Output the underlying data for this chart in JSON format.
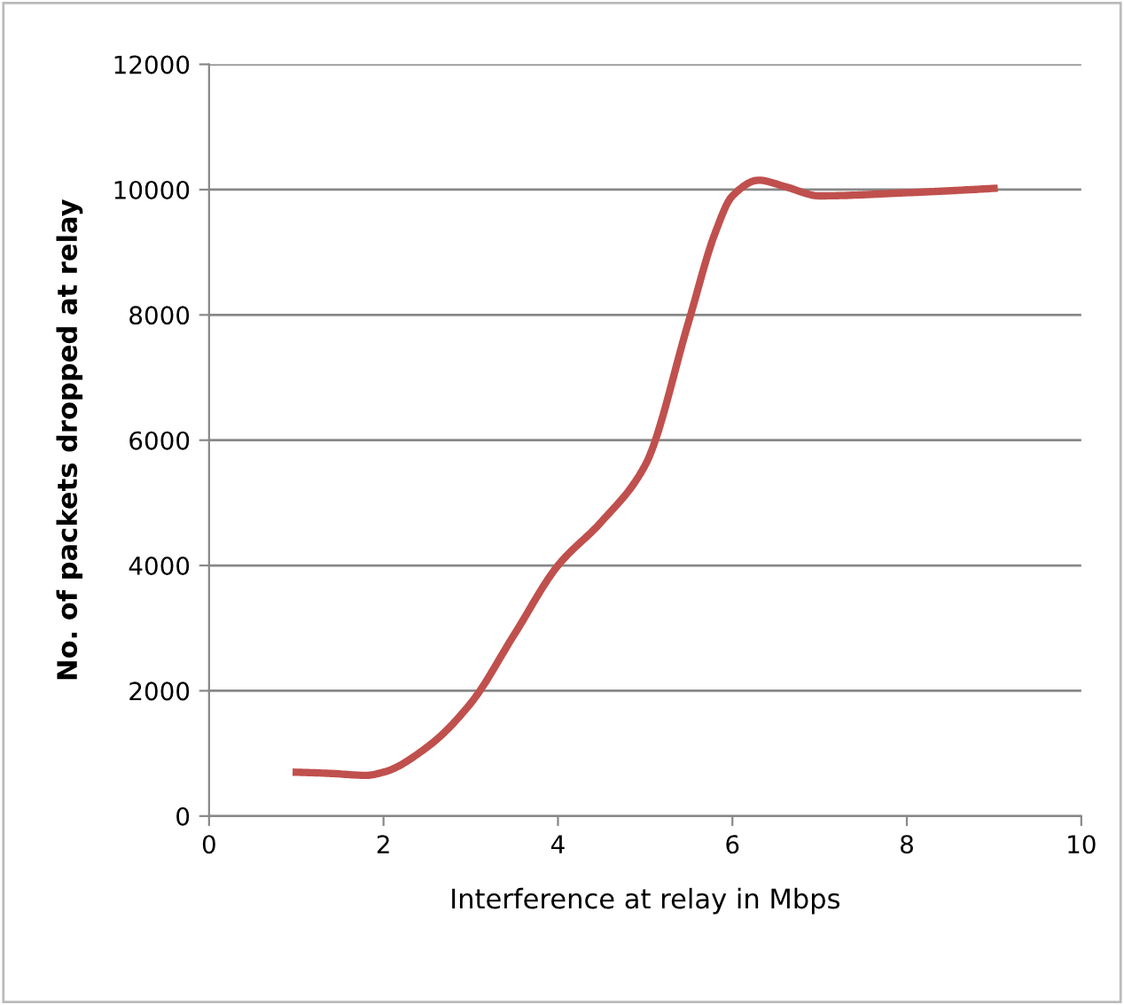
{
  "chart_data": {
    "type": "line",
    "xlabel": "Interference at relay in Mbps",
    "ylabel": "No. of packets dropped at relay",
    "series": [
      {
        "color": "#c0504d",
        "x": [
          1,
          1.4,
          1.8,
          2,
          2.5,
          3,
          3.5,
          4,
          4.5,
          5,
          5.5,
          5.8,
          6,
          6.3,
          6.6,
          7,
          8,
          9
        ],
        "values": [
          700,
          680,
          650,
          700,
          1100,
          1800,
          2900,
          4000,
          4700,
          5600,
          7900,
          9300,
          9900,
          10150,
          10050,
          9900,
          9950,
          10020
        ]
      }
    ],
    "xlim": [
      0,
      10
    ],
    "xticks": [
      0,
      2,
      4,
      6,
      8,
      10
    ],
    "ylim": [
      0,
      12000
    ],
    "yticks": [
      0,
      2000,
      4000,
      6000,
      8000,
      10000,
      12000
    ],
    "grid": "y",
    "legend": false,
    "marker": "none",
    "line_style": "solid"
  }
}
